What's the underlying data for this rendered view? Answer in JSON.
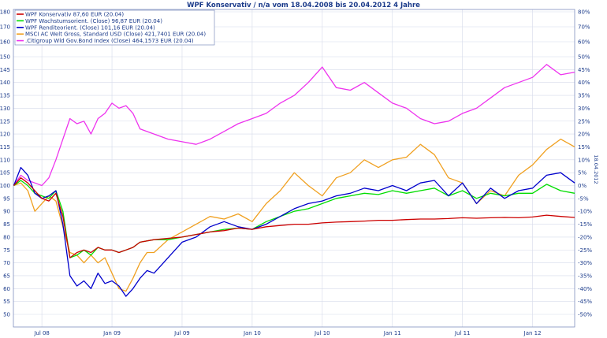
{
  "chart_data": {
    "type": "line",
    "title": "WPF Konservativ / n/a vom 18.04.2008 bis 20.04.2012 4 Jahre",
    "side_label": "18.04.2012",
    "ylim": [
      45,
      180
    ],
    "yticks_left": [
      "50",
      "55",
      "60",
      "65",
      "70",
      "75",
      "80",
      "85",
      "90",
      "95",
      "100",
      "105",
      "110",
      "115",
      "120",
      "125",
      "130",
      "135",
      "140",
      "145",
      "150",
      "160",
      "170",
      "180"
    ],
    "yticks_left_values": [
      50,
      55,
      60,
      65,
      70,
      75,
      80,
      85,
      90,
      95,
      100,
      105,
      110,
      115,
      120,
      125,
      130,
      135,
      140,
      145,
      150,
      160,
      170,
      180
    ],
    "yticks_right": [
      "-50%",
      "-45%",
      "-40%",
      "-35%",
      "-30%",
      "-25%",
      "-20%",
      "-15%",
      "-10%",
      "-5%",
      "0%",
      "5%",
      "10%",
      "15%",
      "20%",
      "25%",
      "30%",
      "35%",
      "40%",
      "45%",
      "50%",
      "60%",
      "70%",
      "80%"
    ],
    "xticks": [
      "Jul 08",
      "Jan 09",
      "Jul 09",
      "Jan 10",
      "Jul 10",
      "Jan 11",
      "Jul 11",
      "Jan 12"
    ],
    "xtick_positions": [
      2008.5,
      2009.0,
      2009.5,
      2010.0,
      2010.5,
      2011.0,
      2011.5,
      2012.0
    ],
    "xlim": [
      2008.297,
      2012.3
    ],
    "grid": true,
    "legend_position": "top-left",
    "series": [
      {
        "name": "WPF Konservativ 87,60 EUR (20.04)",
        "color": "#cc0000",
        "x": [
          2008.3,
          2008.35,
          2008.4,
          2008.45,
          2008.5,
          2008.55,
          2008.6,
          2008.65,
          2008.7,
          2008.75,
          2008.8,
          2008.85,
          2008.9,
          2008.95,
          2009.0,
          2009.05,
          2009.1,
          2009.15,
          2009.2,
          2009.3,
          2009.4,
          2009.5,
          2009.6,
          2009.7,
          2009.8,
          2009.9,
          2010.0,
          2010.1,
          2010.2,
          2010.3,
          2010.4,
          2010.5,
          2010.6,
          2010.7,
          2010.8,
          2010.9,
          2011.0,
          2011.1,
          2011.2,
          2011.3,
          2011.4,
          2011.5,
          2011.6,
          2011.7,
          2011.8,
          2011.9,
          2012.0,
          2012.1,
          2012.2,
          2012.3
        ],
        "y": [
          100,
          103,
          101,
          98,
          95,
          94,
          97,
          88,
          72,
          74,
          75,
          74,
          76,
          75,
          75,
          74,
          75,
          76,
          78,
          79,
          79.5,
          80,
          81,
          82,
          82.5,
          83.5,
          83,
          84,
          84.5,
          85,
          85,
          85.5,
          85.8,
          86,
          86.2,
          86.5,
          86.5,
          86.8,
          87,
          87,
          87.2,
          87.5,
          87.3,
          87.5,
          87.6,
          87.5,
          87.8,
          88.5,
          88,
          87.6
        ]
      },
      {
        "name": "WPF Wachstumsorient. (Close) 96,87 EUR (20.04)",
        "color": "#00dd00",
        "x": [
          2008.3,
          2008.35,
          2008.4,
          2008.45,
          2008.5,
          2008.55,
          2008.6,
          2008.65,
          2008.7,
          2008.75,
          2008.8,
          2008.85,
          2008.9,
          2008.95,
          2009.0,
          2009.05,
          2009.1,
          2009.15,
          2009.2,
          2009.3,
          2009.4,
          2009.5,
          2009.6,
          2009.7,
          2009.8,
          2009.9,
          2010.0,
          2010.1,
          2010.2,
          2010.3,
          2010.4,
          2010.5,
          2010.6,
          2010.7,
          2010.8,
          2010.9,
          2011.0,
          2011.1,
          2011.2,
          2011.3,
          2011.4,
          2011.5,
          2011.6,
          2011.7,
          2011.8,
          2011.9,
          2012.0,
          2012.1,
          2012.2,
          2012.3
        ],
        "y": [
          100,
          102,
          100,
          97,
          96,
          95,
          98,
          90,
          72,
          73,
          75,
          73,
          76,
          75,
          75,
          74,
          75,
          76,
          78,
          79,
          79,
          80,
          81,
          82,
          83,
          83.5,
          83,
          86,
          88,
          90,
          91,
          93,
          95,
          96,
          97,
          96.5,
          98,
          97,
          98,
          99,
          96,
          98,
          95,
          97,
          96,
          97,
          97,
          100.5,
          98,
          97
        ]
      },
      {
        "name": "WPF Renditeorient. (Close) 101,16 EUR (20.04)",
        "color": "#0000cc",
        "x": [
          2008.3,
          2008.35,
          2008.4,
          2008.45,
          2008.5,
          2008.55,
          2008.6,
          2008.65,
          2008.7,
          2008.75,
          2008.8,
          2008.85,
          2008.9,
          2008.95,
          2009.0,
          2009.05,
          2009.1,
          2009.15,
          2009.2,
          2009.25,
          2009.3,
          2009.35,
          2009.4,
          2009.5,
          2009.6,
          2009.7,
          2009.8,
          2009.9,
          2010.0,
          2010.1,
          2010.2,
          2010.3,
          2010.4,
          2010.5,
          2010.6,
          2010.7,
          2010.8,
          2010.9,
          2011.0,
          2011.1,
          2011.2,
          2011.3,
          2011.4,
          2011.5,
          2011.6,
          2011.7,
          2011.8,
          2011.9,
          2012.0,
          2012.1,
          2012.2,
          2012.3
        ],
        "y": [
          100,
          107,
          104,
          97,
          95,
          96,
          98,
          85,
          65,
          61,
          63,
          60,
          66,
          62,
          63,
          61,
          57,
          60,
          64,
          67,
          66,
          69,
          72,
          78,
          80,
          84,
          86,
          84,
          83,
          85,
          88,
          91,
          93,
          94,
          96,
          97,
          99,
          98,
          100,
          98,
          101,
          102,
          96,
          101,
          93,
          99,
          95,
          98,
          99,
          104,
          105,
          101
        ]
      },
      {
        "name": "MSCI AC Welt Gross, Standard USD (Close) 421,7401 EUR (20.04)",
        "color": "#f0a020",
        "x": [
          2008.3,
          2008.35,
          2008.4,
          2008.45,
          2008.5,
          2008.55,
          2008.6,
          2008.65,
          2008.7,
          2008.75,
          2008.8,
          2008.85,
          2008.9,
          2008.95,
          2009.0,
          2009.05,
          2009.1,
          2009.15,
          2009.2,
          2009.25,
          2009.3,
          2009.4,
          2009.5,
          2009.6,
          2009.7,
          2009.8,
          2009.9,
          2010.0,
          2010.1,
          2010.2,
          2010.3,
          2010.4,
          2010.5,
          2010.6,
          2010.7,
          2010.8,
          2010.9,
          2011.0,
          2011.1,
          2011.2,
          2011.3,
          2011.4,
          2011.5,
          2011.6,
          2011.7,
          2011.8,
          2011.9,
          2012.0,
          2012.1,
          2012.2,
          2012.3
        ],
        "y": [
          100,
          101,
          98,
          90,
          93,
          96,
          94,
          84,
          74,
          73,
          70,
          73,
          70,
          72,
          66,
          60,
          59,
          64,
          70,
          74,
          74,
          79,
          82,
          85,
          88,
          87,
          89,
          86,
          93,
          98,
          105,
          100,
          96,
          103,
          105,
          110,
          107,
          110,
          111,
          116,
          112,
          103,
          101,
          93,
          98,
          96,
          104,
          108,
          114,
          118,
          115
        ]
      },
      {
        "name": ".Citigroup Wld Gov.Bond Index (Close) 464,1573 EUR (20.04)",
        "color": "#ee33ee",
        "x": [
          2008.3,
          2008.35,
          2008.4,
          2008.45,
          2008.5,
          2008.55,
          2008.6,
          2008.65,
          2008.7,
          2008.75,
          2008.8,
          2008.85,
          2008.9,
          2008.95,
          2009.0,
          2009.05,
          2009.1,
          2009.15,
          2009.2,
          2009.3,
          2009.4,
          2009.5,
          2009.6,
          2009.7,
          2009.8,
          2009.9,
          2010.0,
          2010.1,
          2010.2,
          2010.3,
          2010.4,
          2010.5,
          2010.6,
          2010.7,
          2010.8,
          2010.9,
          2011.0,
          2011.1,
          2011.2,
          2011.3,
          2011.4,
          2011.5,
          2011.6,
          2011.7,
          2011.8,
          2011.9,
          2012.0,
          2012.1,
          2012.2,
          2012.3
        ],
        "y": [
          100,
          104,
          102,
          101,
          100,
          103,
          110,
          118,
          126,
          124,
          125,
          120,
          126,
          128,
          132,
          130,
          131,
          128,
          122,
          120,
          118,
          117,
          116,
          118,
          121,
          124,
          126,
          128,
          132,
          135,
          140,
          146,
          138,
          137,
          140,
          136,
          132,
          130,
          126,
          124,
          125,
          128,
          130,
          134,
          138,
          140,
          142,
          147,
          143,
          144
        ]
      }
    ]
  }
}
